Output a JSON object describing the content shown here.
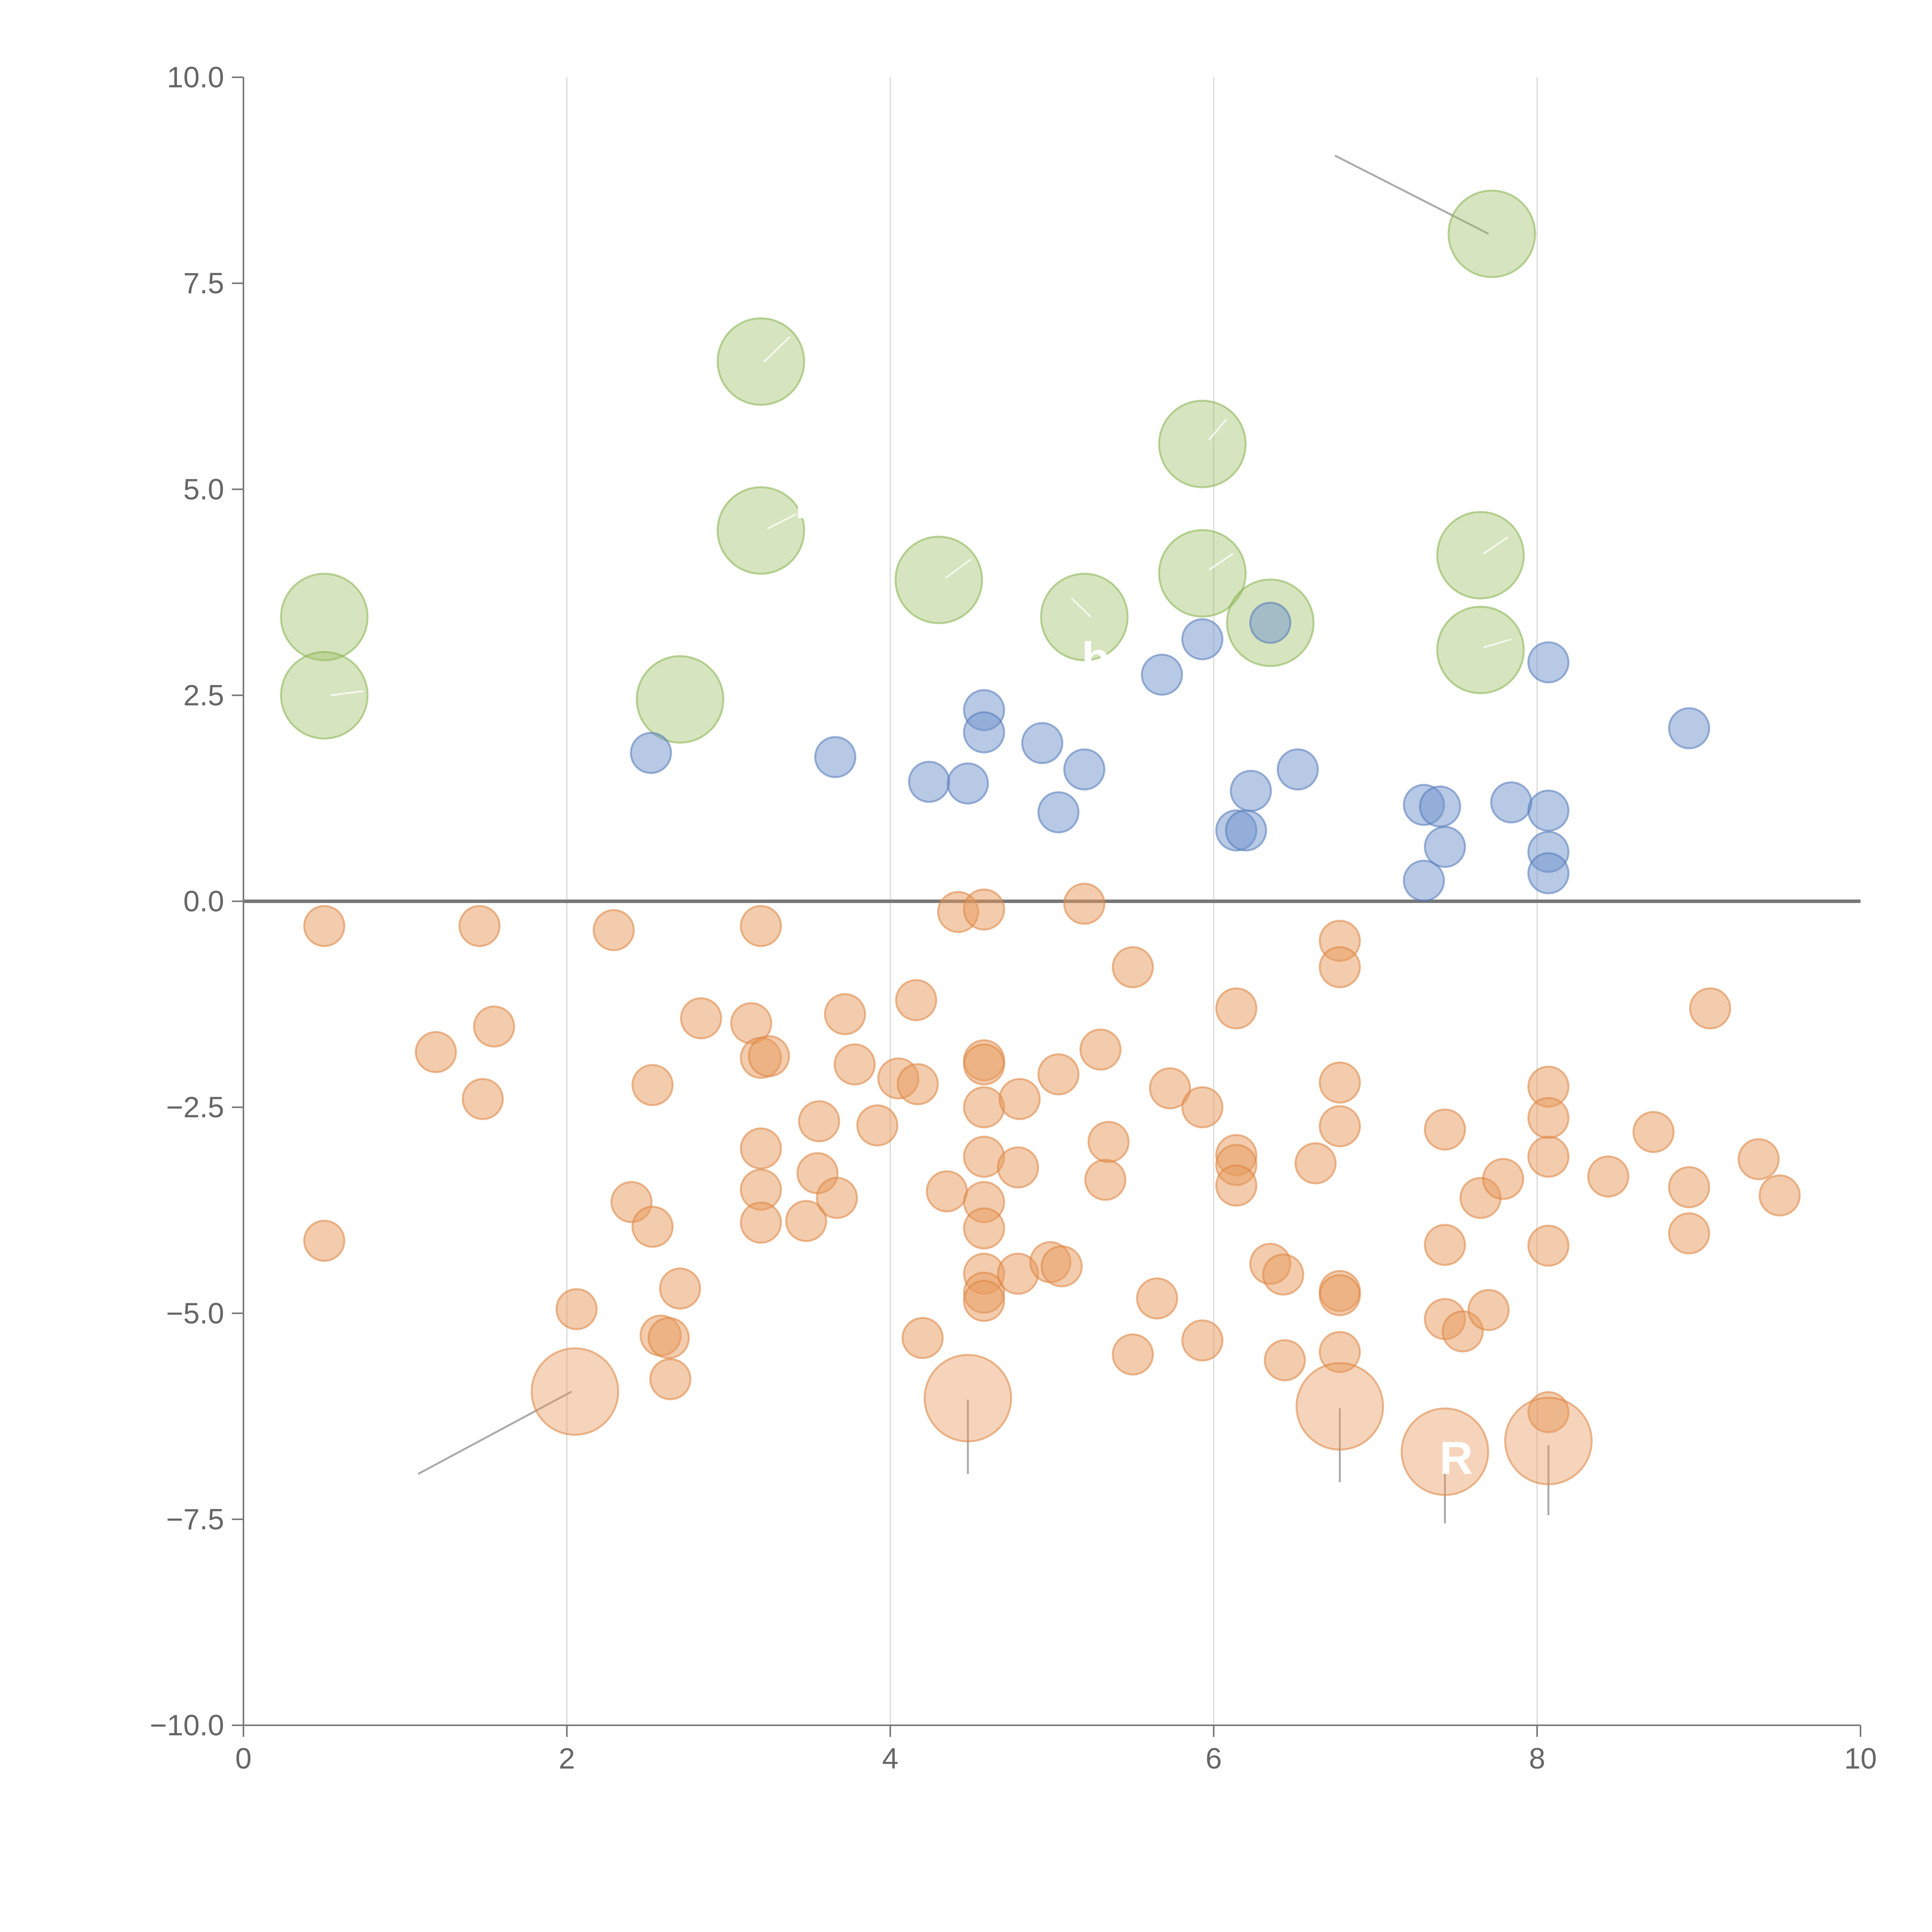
{
  "chart_data": {
    "type": "scatter",
    "title": "",
    "xlabel": "",
    "ylabel": "",
    "xlim": [
      0,
      10
    ],
    "ylim": [
      -10,
      10
    ],
    "x_ticks": [
      0,
      2,
      4,
      6,
      8,
      10
    ],
    "x_tick_labels": [
      "0",
      "2",
      "4",
      "6",
      "8",
      "10"
    ],
    "y_ticks": [
      10,
      7.5,
      5,
      2.5,
      0,
      -2.5,
      -5,
      -7.5,
      -10
    ],
    "y_tick_labels": [
      "10.0",
      "7.5",
      "5.0",
      "2.5",
      "0.0",
      "−2.5",
      "−5.0",
      "−7.5",
      "−10.0"
    ],
    "grid": "vertical",
    "zero_line": true,
    "legend": "none",
    "colors": {
      "green": "#9dc266",
      "green_edge": "#86b04f",
      "blue": "#6f93cc",
      "blue_edge": "#5479b8",
      "orange": "#e8995c",
      "orange_edge": "#dc8440",
      "axis": "#777777",
      "grid": "#d8d8d8",
      "leader": "#aaaaaa"
    },
    "partial_labels": [
      {
        "text": "I",
        "x": 3.45,
        "y": 4.65
      },
      {
        "text": "b i",
        "x": 5.35,
        "y": 2.75
      },
      {
        "text": "R",
        "x": 7.5,
        "y": -6.95
      }
    ],
    "series": [
      {
        "name": "green",
        "color": "green",
        "size": "large",
        "points": [
          {
            "x": 0.5,
            "y": 3.45
          },
          {
            "x": 0.5,
            "y": 2.5
          },
          {
            "x": 2.7,
            "y": 2.45
          },
          {
            "x": 3.2,
            "y": 6.55
          },
          {
            "x": 3.2,
            "y": 4.5
          },
          {
            "x": 4.3,
            "y": 3.9
          },
          {
            "x": 5.2,
            "y": 3.45
          },
          {
            "x": 5.93,
            "y": 5.55
          },
          {
            "x": 5.93,
            "y": 3.98
          },
          {
            "x": 6.35,
            "y": 3.38
          },
          {
            "x": 7.65,
            "y": 4.2
          },
          {
            "x": 7.65,
            "y": 3.05
          },
          {
            "x": 7.72,
            "y": 8.1
          }
        ]
      },
      {
        "name": "blue",
        "color": "blue",
        "size": "small",
        "points": [
          {
            "x": 2.52,
            "y": 1.8
          },
          {
            "x": 3.66,
            "y": 1.75
          },
          {
            "x": 4.24,
            "y": 1.45
          },
          {
            "x": 4.48,
            "y": 1.43
          },
          {
            "x": 4.58,
            "y": 2.32
          },
          {
            "x": 4.58,
            "y": 2.05
          },
          {
            "x": 4.94,
            "y": 1.92
          },
          {
            "x": 5.04,
            "y": 1.08
          },
          {
            "x": 5.2,
            "y": 1.6
          },
          {
            "x": 5.68,
            "y": 2.75
          },
          {
            "x": 5.93,
            "y": 3.18
          },
          {
            "x": 6.14,
            "y": 0.86
          },
          {
            "x": 6.2,
            "y": 0.86
          },
          {
            "x": 6.23,
            "y": 1.34
          },
          {
            "x": 6.35,
            "y": 3.38
          },
          {
            "x": 6.52,
            "y": 1.6
          },
          {
            "x": 7.3,
            "y": 1.17
          },
          {
            "x": 7.3,
            "y": 0.25
          },
          {
            "x": 7.4,
            "y": 1.15
          },
          {
            "x": 7.43,
            "y": 0.66
          },
          {
            "x": 7.84,
            "y": 1.2
          },
          {
            "x": 8.07,
            "y": 2.9
          },
          {
            "x": 8.07,
            "y": 1.1
          },
          {
            "x": 8.07,
            "y": 0.6
          },
          {
            "x": 8.07,
            "y": 0.34
          },
          {
            "x": 8.94,
            "y": 2.1
          }
        ]
      },
      {
        "name": "orange",
        "color": "orange",
        "size": "small",
        "points": [
          {
            "x": 0.5,
            "y": -0.3
          },
          {
            "x": 0.5,
            "y": -4.12
          },
          {
            "x": 1.19,
            "y": -1.83
          },
          {
            "x": 1.46,
            "y": -0.3
          },
          {
            "x": 1.48,
            "y": -2.4
          },
          {
            "x": 1.55,
            "y": -1.52
          },
          {
            "x": 2.06,
            "y": -4.95
          },
          {
            "x": 2.29,
            "y": -0.35
          },
          {
            "x": 2.4,
            "y": -3.65
          },
          {
            "x": 2.53,
            "y": -2.23
          },
          {
            "x": 2.53,
            "y": -3.95
          },
          {
            "x": 2.58,
            "y": -5.27
          },
          {
            "x": 2.63,
            "y": -5.3
          },
          {
            "x": 2.64,
            "y": -5.8
          },
          {
            "x": 2.7,
            "y": -4.7
          },
          {
            "x": 2.83,
            "y": -1.42
          },
          {
            "x": 3.14,
            "y": -1.48
          },
          {
            "x": 3.2,
            "y": -0.3
          },
          {
            "x": 3.2,
            "y": -1.9
          },
          {
            "x": 3.2,
            "y": -3.0
          },
          {
            "x": 3.2,
            "y": -3.5
          },
          {
            "x": 3.2,
            "y": -3.9
          },
          {
            "x": 3.25,
            "y": -1.88
          },
          {
            "x": 3.48,
            "y": -3.88
          },
          {
            "x": 3.55,
            "y": -3.3
          },
          {
            "x": 3.56,
            "y": -2.67
          },
          {
            "x": 3.67,
            "y": -3.6
          },
          {
            "x": 3.72,
            "y": -1.37
          },
          {
            "x": 3.78,
            "y": -1.98
          },
          {
            "x": 3.92,
            "y": -2.72
          },
          {
            "x": 4.05,
            "y": -2.15
          },
          {
            "x": 4.16,
            "y": -1.2
          },
          {
            "x": 4.17,
            "y": -2.22
          },
          {
            "x": 4.2,
            "y": -5.3
          },
          {
            "x": 4.35,
            "y": -3.52
          },
          {
            "x": 4.42,
            "y": -0.13
          },
          {
            "x": 4.58,
            "y": -0.1
          },
          {
            "x": 4.58,
            "y": -1.93
          },
          {
            "x": 4.58,
            "y": -1.98
          },
          {
            "x": 4.58,
            "y": -2.5
          },
          {
            "x": 4.58,
            "y": -3.1
          },
          {
            "x": 4.58,
            "y": -3.65
          },
          {
            "x": 4.58,
            "y": -3.97
          },
          {
            "x": 4.58,
            "y": -4.52
          },
          {
            "x": 4.58,
            "y": -4.75
          },
          {
            "x": 4.58,
            "y": -4.85
          },
          {
            "x": 4.79,
            "y": -4.52
          },
          {
            "x": 4.79,
            "y": -3.23
          },
          {
            "x": 4.8,
            "y": -2.4
          },
          {
            "x": 4.99,
            "y": -4.38
          },
          {
            "x": 5.04,
            "y": -2.1
          },
          {
            "x": 5.06,
            "y": -4.43
          },
          {
            "x": 5.2,
            "y": -0.03
          },
          {
            "x": 5.3,
            "y": -1.8
          },
          {
            "x": 5.33,
            "y": -3.38
          },
          {
            "x": 5.35,
            "y": -2.92
          },
          {
            "x": 5.5,
            "y": -0.8
          },
          {
            "x": 5.5,
            "y": -5.5
          },
          {
            "x": 5.65,
            "y": -4.82
          },
          {
            "x": 5.73,
            "y": -2.27
          },
          {
            "x": 5.93,
            "y": -2.5
          },
          {
            "x": 5.93,
            "y": -5.33
          },
          {
            "x": 6.14,
            "y": -1.3
          },
          {
            "x": 6.14,
            "y": -3.08
          },
          {
            "x": 6.14,
            "y": -3.2
          },
          {
            "x": 6.14,
            "y": -3.45
          },
          {
            "x": 6.35,
            "y": -4.4
          },
          {
            "x": 6.43,
            "y": -4.53
          },
          {
            "x": 6.44,
            "y": -5.57
          },
          {
            "x": 6.63,
            "y": -3.18
          },
          {
            "x": 6.78,
            "y": -0.48
          },
          {
            "x": 6.78,
            "y": -0.8
          },
          {
            "x": 6.78,
            "y": -2.2
          },
          {
            "x": 6.78,
            "y": -2.73
          },
          {
            "x": 6.78,
            "y": -4.73
          },
          {
            "x": 6.78,
            "y": -4.78
          },
          {
            "x": 6.78,
            "y": -5.47
          },
          {
            "x": 7.43,
            "y": -2.77
          },
          {
            "x": 7.43,
            "y": -4.17
          },
          {
            "x": 7.43,
            "y": -5.07
          },
          {
            "x": 7.54,
            "y": -5.22
          },
          {
            "x": 7.65,
            "y": -3.6
          },
          {
            "x": 7.7,
            "y": -4.96
          },
          {
            "x": 7.79,
            "y": -3.37
          },
          {
            "x": 8.07,
            "y": -2.25
          },
          {
            "x": 8.07,
            "y": -2.63
          },
          {
            "x": 8.07,
            "y": -3.1
          },
          {
            "x": 8.07,
            "y": -4.18
          },
          {
            "x": 8.07,
            "y": -6.2
          },
          {
            "x": 8.44,
            "y": -3.34
          },
          {
            "x": 8.72,
            "y": -2.8
          },
          {
            "x": 8.94,
            "y": -3.47
          },
          {
            "x": 8.94,
            "y": -4.03
          },
          {
            "x": 9.07,
            "y": -1.3
          },
          {
            "x": 9.37,
            "y": -3.13
          },
          {
            "x": 9.5,
            "y": -3.57
          }
        ]
      },
      {
        "name": "orange-large",
        "color": "orange",
        "size": "large",
        "points": [
          {
            "x": 2.05,
            "y": -5.95
          },
          {
            "x": 4.48,
            "y": -6.03
          },
          {
            "x": 6.78,
            "y": -6.13
          },
          {
            "x": 7.43,
            "y": -6.68
          },
          {
            "x": 8.07,
            "y": -6.55
          }
        ]
      }
    ],
    "leader_lines": [
      {
        "from": [
          7.7,
          8.1
        ],
        "to": [
          6.75,
          9.05
        ],
        "style": "outer"
      },
      {
        "from": [
          2.03,
          -5.95
        ],
        "to": [
          1.08,
          -6.95
        ],
        "style": "outer"
      },
      {
        "from": [
          4.48,
          -6.05
        ],
        "to": [
          4.48,
          -6.95
        ],
        "style": "outer"
      },
      {
        "from": [
          6.78,
          -6.15
        ],
        "to": [
          6.78,
          -7.05
        ],
        "style": "outer"
      },
      {
        "from": [
          7.43,
          -6.68
        ],
        "to": [
          7.43,
          -7.55
        ],
        "style": "outer"
      },
      {
        "from": [
          8.07,
          -6.6
        ],
        "to": [
          8.07,
          -7.45
        ],
        "style": "outer"
      },
      {
        "from": [
          3.22,
          6.55
        ],
        "to": [
          3.38,
          6.85
        ],
        "style": "inner"
      },
      {
        "from": [
          3.24,
          4.52
        ],
        "to": [
          3.42,
          4.7
        ],
        "style": "inner"
      },
      {
        "from": [
          0.54,
          2.5
        ],
        "to": [
          0.74,
          2.55
        ],
        "style": "inner"
      },
      {
        "from": [
          4.34,
          3.92
        ],
        "to": [
          4.5,
          4.15
        ],
        "style": "inner"
      },
      {
        "from": [
          5.24,
          3.45
        ],
        "to": [
          5.12,
          3.68
        ],
        "style": "inner"
      },
      {
        "from": [
          5.97,
          5.6
        ],
        "to": [
          6.08,
          5.85
        ],
        "style": "inner"
      },
      {
        "from": [
          5.97,
          4.02
        ],
        "to": [
          6.12,
          4.22
        ],
        "style": "inner"
      },
      {
        "from": [
          7.67,
          4.22
        ],
        "to": [
          7.82,
          4.42
        ],
        "style": "inner"
      },
      {
        "from": [
          7.67,
          3.08
        ],
        "to": [
          7.84,
          3.18
        ],
        "style": "inner"
      }
    ]
  }
}
